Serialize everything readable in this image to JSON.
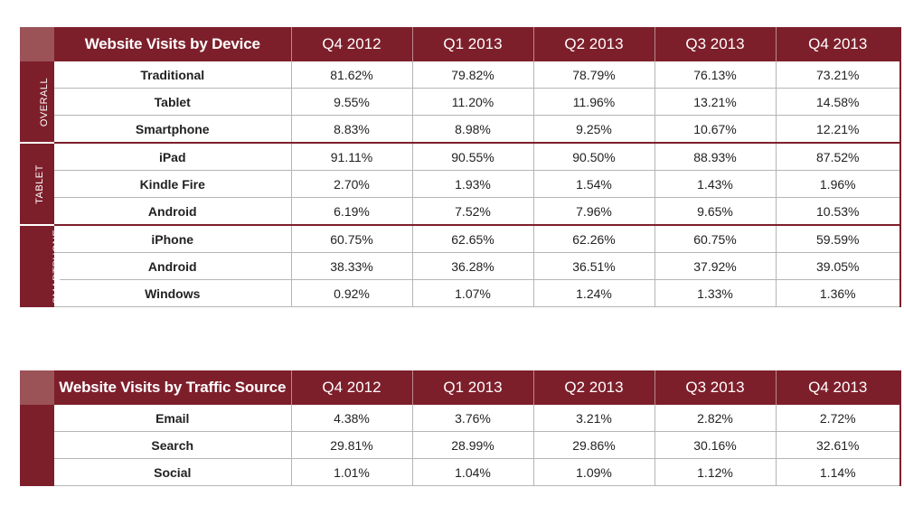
{
  "chart_data": [
    {
      "type": "table",
      "title": "Website Visits by Device",
      "columns": [
        "Q4 2012",
        "Q1 2013",
        "Q2 2013",
        "Q3 2013",
        "Q4 2013"
      ],
      "groups": [
        {
          "name": "OVERALL",
          "rows": [
            {
              "label": "Traditional",
              "values": [
                "81.62%",
                "79.82%",
                "78.79%",
                "76.13%",
                "73.21%"
              ]
            },
            {
              "label": "Tablet",
              "values": [
                "9.55%",
                "11.20%",
                "11.96%",
                "13.21%",
                "14.58%"
              ]
            },
            {
              "label": "Smartphone",
              "values": [
                "8.83%",
                "8.98%",
                "9.25%",
                "10.67%",
                "12.21%"
              ]
            }
          ]
        },
        {
          "name": "TABLET",
          "rows": [
            {
              "label": "iPad",
              "values": [
                "91.11%",
                "90.55%",
                "90.50%",
                "88.93%",
                "87.52%"
              ]
            },
            {
              "label": "Kindle Fire",
              "values": [
                "2.70%",
                "1.93%",
                "1.54%",
                "1.43%",
                "1.96%"
              ]
            },
            {
              "label": "Android",
              "values": [
                "6.19%",
                "7.52%",
                "7.96%",
                "9.65%",
                "10.53%"
              ]
            }
          ]
        },
        {
          "name": "SMARTPHONE",
          "rows": [
            {
              "label": "iPhone",
              "values": [
                "60.75%",
                "62.65%",
                "62.26%",
                "60.75%",
                "59.59%"
              ]
            },
            {
              "label": "Android",
              "values": [
                "38.33%",
                "36.28%",
                "36.51%",
                "37.92%",
                "39.05%"
              ]
            },
            {
              "label": "Windows",
              "values": [
                "0.92%",
                "1.07%",
                "1.24%",
                "1.33%",
                "1.36%"
              ]
            }
          ]
        }
      ]
    },
    {
      "type": "table",
      "title": "Website Visits by Traffic Source",
      "columns": [
        "Q4 2012",
        "Q1 2013",
        "Q2 2013",
        "Q3 2013",
        "Q4 2013"
      ],
      "rows": [
        {
          "label": "Email",
          "values": [
            "4.38%",
            "3.76%",
            "3.21%",
            "2.82%",
            "2.72%"
          ]
        },
        {
          "label": "Search",
          "values": [
            "29.81%",
            "28.99%",
            "29.86%",
            "30.16%",
            "32.61%"
          ]
        },
        {
          "label": "Social",
          "values": [
            "1.01%",
            "1.04%",
            "1.09%",
            "1.12%",
            "1.14%"
          ]
        }
      ]
    }
  ],
  "colors": {
    "header": "#7d1f2b",
    "corner": "#9b5358",
    "text": "#222222"
  }
}
